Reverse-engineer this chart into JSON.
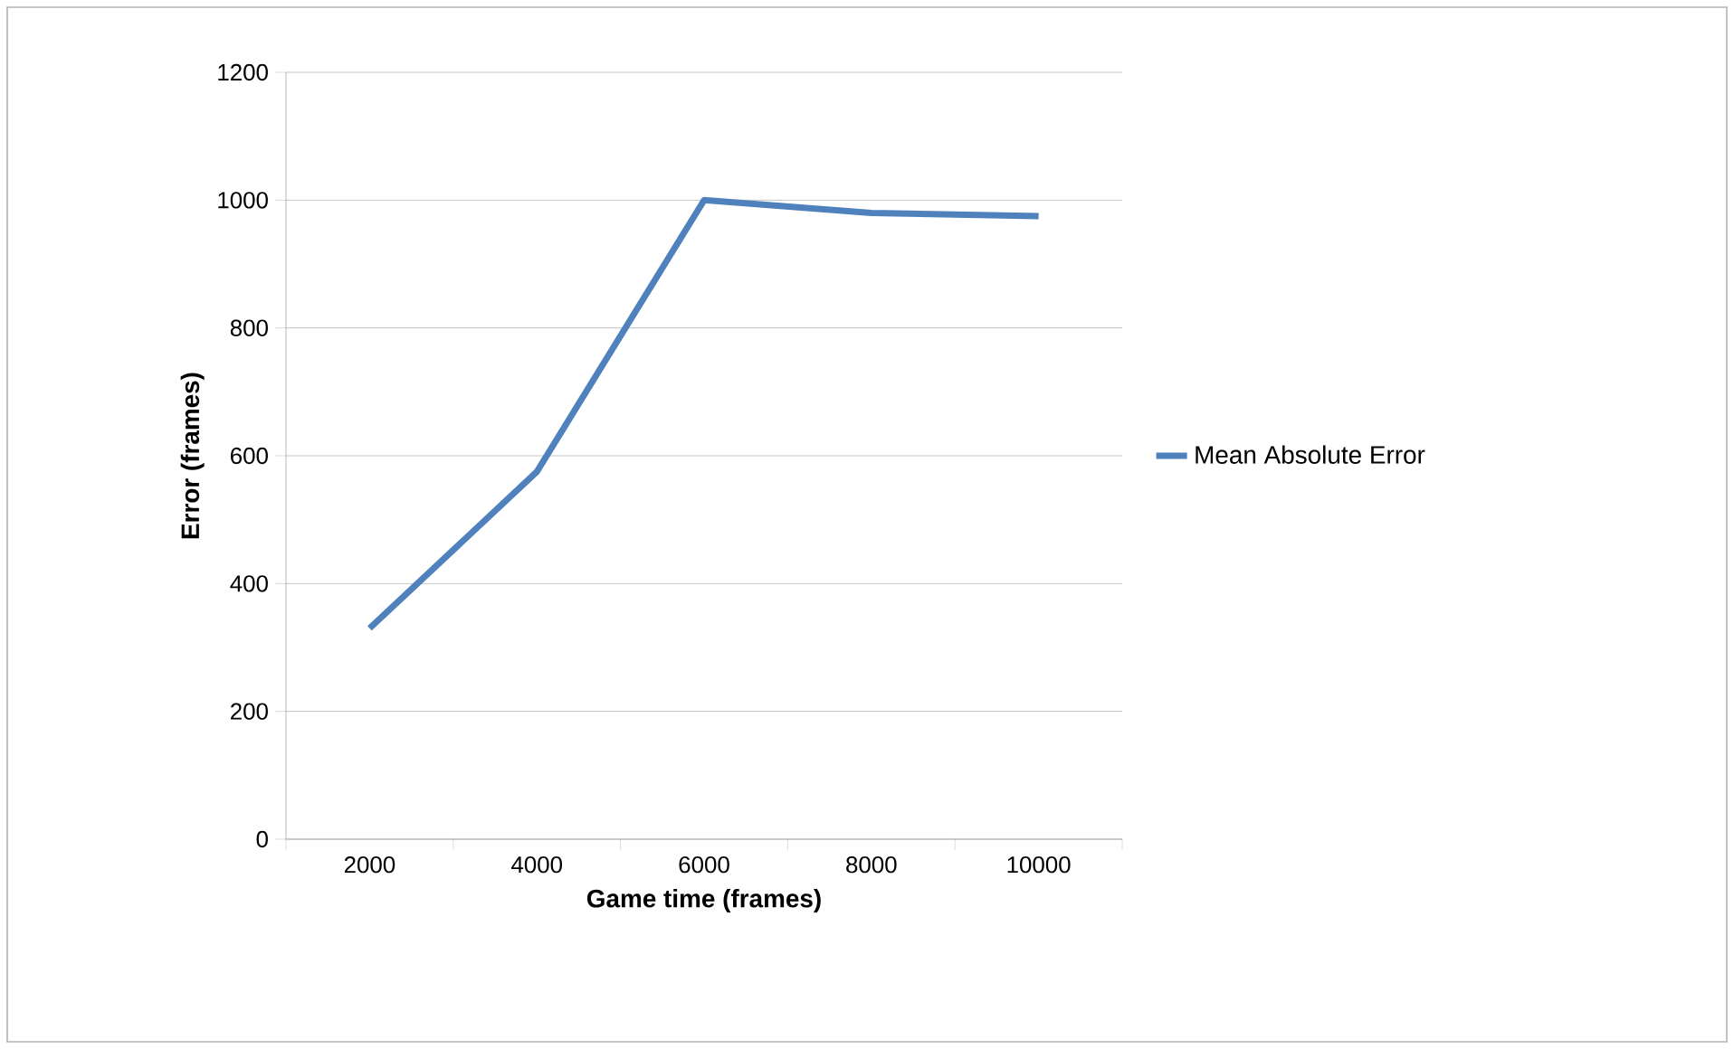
{
  "chart_data": {
    "type": "line",
    "xlabel": "Game time (frames)",
    "ylabel": "Error (frames)",
    "categories": [
      "2000",
      "4000",
      "6000",
      "8000",
      "10000"
    ],
    "series": [
      {
        "name": "Mean Absolute Error",
        "color": "#4f81bd",
        "values": [
          330,
          575,
          1000,
          980,
          975
        ]
      }
    ],
    "ylim": [
      0,
      1200
    ],
    "yticks": [
      0,
      200,
      400,
      600,
      800,
      1000,
      1200
    ],
    "grid": "y",
    "legend": "right",
    "marker": "none",
    "line_style": "solid"
  }
}
